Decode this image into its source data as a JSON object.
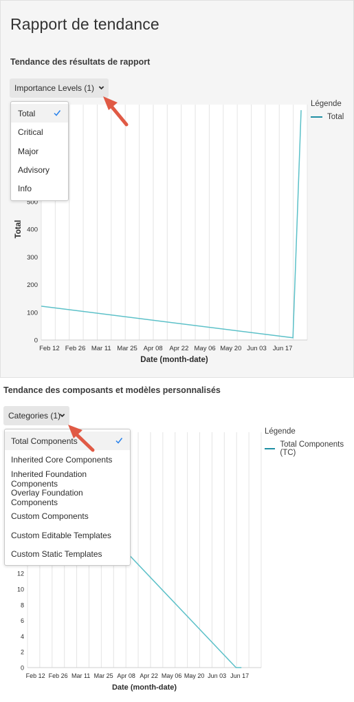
{
  "page": {
    "title": "Rapport de tendance"
  },
  "section1": {
    "title": "Tendance des résultats de rapport",
    "dropdown_label": "Importance Levels (1)",
    "menu_items": [
      "Total",
      "Critical",
      "Major",
      "Advisory",
      "Info"
    ],
    "selected_index": 0,
    "legend_title": "Légende",
    "legend_items": [
      "Total"
    ]
  },
  "section2": {
    "title": "Tendance des composants et modèles personnalisés",
    "dropdown_label": "Categories (1)",
    "menu_items": [
      "Total Components",
      "Inherited Core Components",
      "Inherited Foundation Components",
      "Overlay Foundation Components",
      "Custom Components",
      "Custom Editable Templates",
      "Custom Static Templates"
    ],
    "selected_index": 0,
    "legend_title": "Légende",
    "legend_items": [
      "Total Components (TC)"
    ]
  },
  "colors": {
    "series": "#5bc0c8",
    "legend_swatch": "#1f8fa3",
    "arrow": "#e05a45",
    "check": "#2680eb"
  },
  "chart_data": [
    {
      "type": "line",
      "xlabel": "Date (month-date)",
      "ylabel": "Total",
      "x_ticks": [
        "Feb 12",
        "Feb 26",
        "Mar 11",
        "Mar 25",
        "Apr 08",
        "Apr 22",
        "May 06",
        "May 20",
        "Jun 03",
        "Jun 17"
      ],
      "y_ticks": [
        0,
        100,
        200,
        300,
        400,
        500
      ],
      "y_ticks_visible": [
        "0",
        "100",
        "200",
        "300",
        "400",
        "500"
      ],
      "ylim": [
        0,
        850
      ],
      "xlim": [
        0,
        130
      ],
      "grid": "vertical",
      "legend": "right",
      "series": [
        {
          "name": "Total",
          "points": [
            [
              0,
              122
            ],
            [
              123,
              8
            ],
            [
              127,
              830
            ]
          ]
        }
      ]
    },
    {
      "type": "line",
      "xlabel": "Date (month-date)",
      "ylabel": "",
      "x_ticks": [
        "Feb 12",
        "Feb 26",
        "Mar 11",
        "Mar 25",
        "Apr 08",
        "Apr 22",
        "May 06",
        "May 20",
        "Jun 03",
        "Jun 17"
      ],
      "y_ticks": [
        0,
        2,
        4,
        6,
        8,
        10,
        12
      ],
      "y_ticks_visible": [
        "0",
        "2",
        "4",
        "6",
        "8",
        "10",
        "12"
      ],
      "ylim": [
        0,
        30
      ],
      "xlim": [
        0,
        130
      ],
      "grid": "vertical",
      "legend": "right",
      "series": [
        {
          "name": "Total Components (TC)",
          "points": [
            [
              0,
              28
            ],
            [
              116,
              0
            ],
            [
              119,
              0
            ]
          ]
        }
      ]
    }
  ]
}
